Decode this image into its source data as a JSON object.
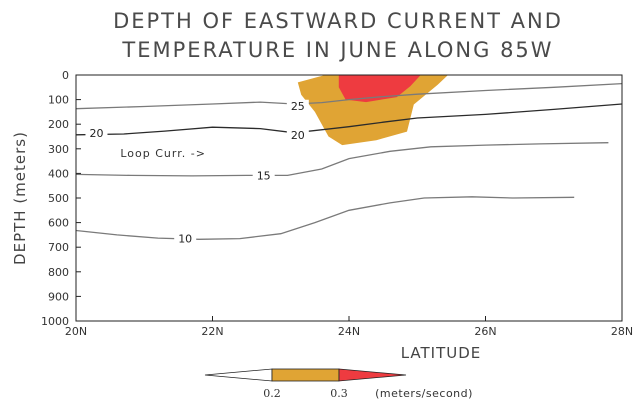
{
  "chart_data": {
    "type": "heatmap",
    "title_lines": [
      "DEPTH OF EASTWARD CURRENT  AND",
      "TEMPERATURE IN JUNE ALONG 85W"
    ],
    "xlabel": "LATITUDE",
    "ylabel": "DEPTH (meters)",
    "xlim": [
      20,
      28
    ],
    "ylim": [
      1000,
      0
    ],
    "x_ticks": [
      {
        "value": 20,
        "label": "20N"
      },
      {
        "value": 22,
        "label": "22N"
      },
      {
        "value": 24,
        "label": "24N"
      },
      {
        "value": 26,
        "label": "26N"
      },
      {
        "value": 28,
        "label": "28N"
      }
    ],
    "y_ticks": [
      {
        "value": 0,
        "label": "0"
      },
      {
        "value": 100,
        "label": "100"
      },
      {
        "value": 200,
        "label": "200"
      },
      {
        "value": 300,
        "label": "300"
      },
      {
        "value": 400,
        "label": "400"
      },
      {
        "value": 500,
        "label": "500"
      },
      {
        "value": 600,
        "label": "600"
      },
      {
        "value": 700,
        "label": "700"
      },
      {
        "value": 800,
        "label": "800"
      },
      {
        "value": 900,
        "label": "900"
      },
      {
        "value": 1000,
        "label": "1000"
      }
    ],
    "current_regions": [
      {
        "level": 0.2,
        "color": "#e0a434",
        "polygon": [
          [
            23.65,
            0
          ],
          [
            25.45,
            0
          ],
          [
            25.3,
            40
          ],
          [
            24.95,
            120
          ],
          [
            24.85,
            230
          ],
          [
            24.4,
            265
          ],
          [
            23.9,
            285
          ],
          [
            23.7,
            250
          ],
          [
            23.5,
            150
          ],
          [
            23.3,
            80
          ],
          [
            23.25,
            30
          ]
        ]
      },
      {
        "level": 0.3,
        "color": "#ee3b40",
        "polygon": [
          [
            23.85,
            0
          ],
          [
            25.05,
            0
          ],
          [
            24.9,
            45
          ],
          [
            24.7,
            90
          ],
          [
            24.25,
            110
          ],
          [
            23.95,
            100
          ],
          [
            23.85,
            50
          ]
        ]
      }
    ],
    "temperature_contours": [
      {
        "label": "25",
        "label_at": [
          23.25,
          125
        ],
        "color": "#7a7a7a",
        "points": [
          [
            20,
            137
          ],
          [
            21,
            128
          ],
          [
            22,
            118
          ],
          [
            22.7,
            110
          ],
          [
            23.2,
            118
          ],
          [
            23.6,
            112
          ],
          [
            24,
            100
          ],
          [
            24.5,
            88
          ],
          [
            25,
            78
          ],
          [
            26,
            63
          ],
          [
            27,
            50
          ],
          [
            28,
            35
          ]
        ]
      },
      {
        "label": "20",
        "label_at": [
          20.3,
          235
        ],
        "color": "#2b2b2b",
        "points": [
          [
            20,
            243
          ],
          [
            20.7,
            240
          ],
          [
            21.3,
            228
          ],
          [
            22,
            212
          ],
          [
            22.7,
            218
          ],
          [
            23.2,
            235
          ],
          [
            24,
            210
          ],
          [
            24.5,
            192
          ],
          [
            25,
            175
          ],
          [
            26,
            160
          ],
          [
            27,
            140
          ],
          [
            28,
            118
          ]
        ]
      },
      {
        "label": "20",
        "label_at": [
          23.25,
          243
        ],
        "color": "#2b2b2b",
        "points": []
      },
      {
        "label": "15",
        "label_at": [
          22.75,
          408
        ],
        "color": "#7a7a7a",
        "points": [
          [
            20,
            404
          ],
          [
            20.8,
            408
          ],
          [
            21.7,
            410
          ],
          [
            22.5,
            408
          ],
          [
            23.1,
            408
          ],
          [
            23.6,
            382
          ],
          [
            24,
            340
          ],
          [
            24.6,
            310
          ],
          [
            25.2,
            292
          ],
          [
            26,
            285
          ],
          [
            26.8,
            280
          ],
          [
            27.8,
            275
          ]
        ]
      },
      {
        "label": "10",
        "label_at": [
          21.6,
          665
        ],
        "color": "#7a7a7a",
        "points": [
          [
            20,
            632
          ],
          [
            20.6,
            650
          ],
          [
            21.2,
            663
          ],
          [
            21.8,
            668
          ],
          [
            22.4,
            665
          ],
          [
            23,
            645
          ],
          [
            23.5,
            600
          ],
          [
            24,
            550
          ],
          [
            24.6,
            520
          ],
          [
            25.1,
            500
          ],
          [
            25.8,
            495
          ],
          [
            26.4,
            500
          ],
          [
            27.3,
            497
          ]
        ]
      }
    ],
    "colorbar": {
      "levels": [
        "0.2",
        "0.3"
      ],
      "units": "(meters/second)",
      "colors": [
        "#ffffff",
        "#e0a434",
        "#ee3b40"
      ]
    },
    "annotations": [
      {
        "text": "Loop Curr.  ->",
        "at": [
          20.65,
          318
        ]
      }
    ]
  }
}
